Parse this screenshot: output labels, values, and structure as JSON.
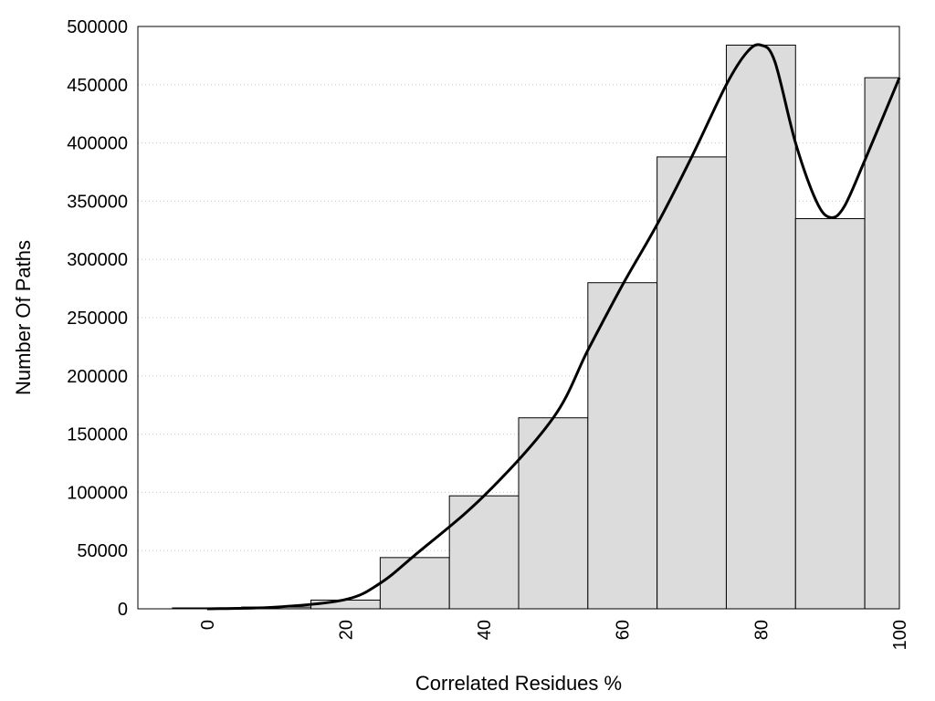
{
  "chart_data": {
    "type": "bar",
    "xlabel": "Correlated Residues %",
    "ylabel": "Number Of Paths",
    "x_ticks": [
      0,
      20,
      40,
      60,
      80,
      100
    ],
    "y_ticks": [
      0,
      50000,
      100000,
      150000,
      200000,
      250000,
      300000,
      350000,
      400000,
      450000,
      500000
    ],
    "xlim": [
      -10,
      100
    ],
    "ylim": [
      0,
      500000
    ],
    "grid": "horizontal dotted",
    "bins": [
      {
        "x0": -5,
        "x1": 5,
        "value": 800
      },
      {
        "x0": 5,
        "x1": 15,
        "value": 1500
      },
      {
        "x0": 15,
        "x1": 25,
        "value": 7500
      },
      {
        "x0": 25,
        "x1": 35,
        "value": 44000
      },
      {
        "x0": 35,
        "x1": 45,
        "value": 97000
      },
      {
        "x0": 45,
        "x1": 55,
        "value": 164000
      },
      {
        "x0": 55,
        "x1": 65,
        "value": 280000
      },
      {
        "x0": 65,
        "x1": 75,
        "value": 388000
      },
      {
        "x0": 75,
        "x1": 85,
        "value": 484000
      },
      {
        "x0": 85,
        "x1": 95,
        "value": 335000
      },
      {
        "x0": 95,
        "x1": 105,
        "value": 456000
      }
    ],
    "curve": {
      "x": [
        0,
        10,
        20,
        25,
        30,
        40,
        50,
        55,
        60,
        65,
        70,
        75,
        78,
        80,
        82,
        85,
        88,
        90,
        92,
        95,
        100
      ],
      "y": [
        0,
        1500,
        8000,
        22000,
        46000,
        97000,
        164000,
        222000,
        278000,
        330000,
        388000,
        450000,
        478000,
        484000,
        470000,
        400000,
        350000,
        336000,
        345000,
        385000,
        456000
      ]
    },
    "bar_color": "#dcdcdc",
    "line_color": "#000000"
  }
}
